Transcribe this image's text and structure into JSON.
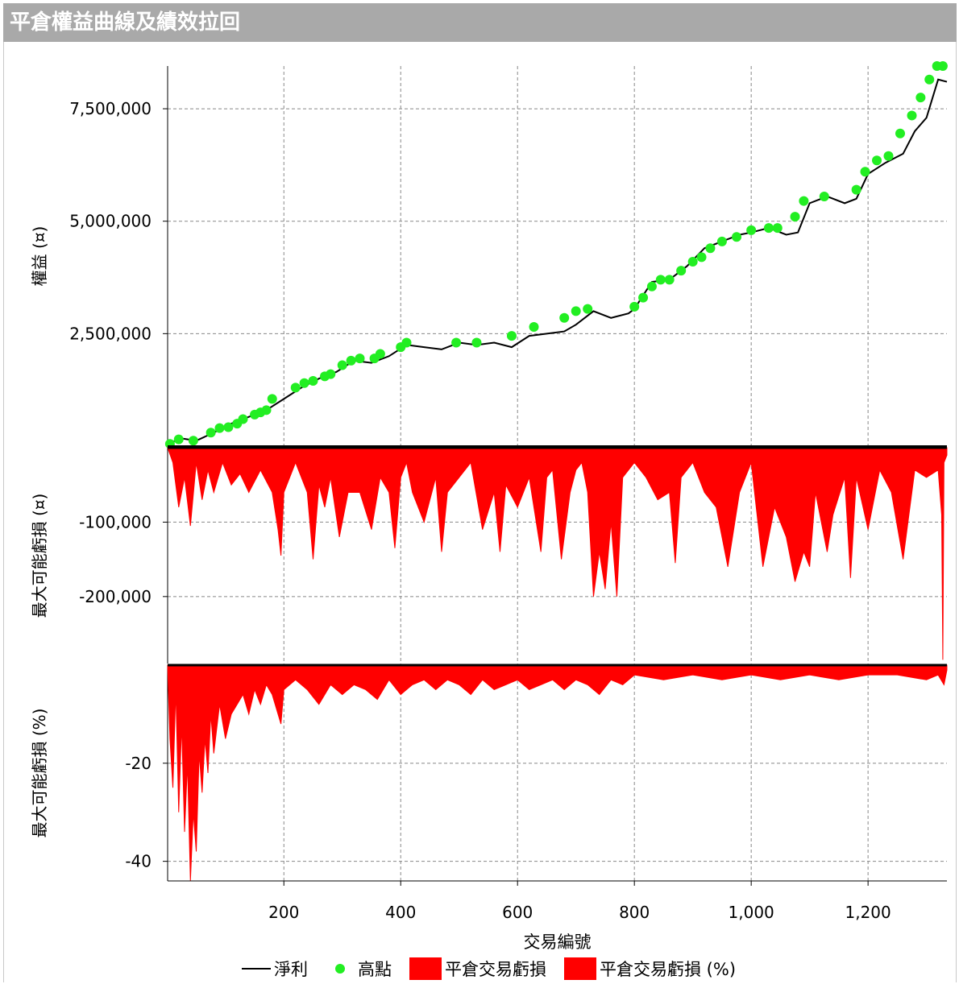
{
  "window": {
    "title": "平倉權益曲線及績效拉回"
  },
  "colors": {
    "equity_line": "#000000",
    "peak_marker": "#22ee22",
    "drawdown_fill": "#ff0000",
    "grid": "#888888",
    "titlebar_bg": "#a9a9a9"
  },
  "legend": [
    {
      "label": "淨利",
      "kind": "line",
      "color": "#000000"
    },
    {
      "label": "高點",
      "kind": "dot",
      "color": "#22ee22"
    },
    {
      "label": "平倉交易虧損",
      "kind": "box",
      "color": "#ff0000"
    },
    {
      "label": "平倉交易虧損 (%)",
      "kind": "box",
      "color": "#ff0000"
    }
  ],
  "chart_data": {
    "type": "line",
    "xlabel": "交易編號",
    "xlim": [
      1,
      1335
    ],
    "x_ticks": [
      200,
      400,
      600,
      800,
      1000,
      1200
    ],
    "x_tick_labels": [
      "200",
      "400",
      "600",
      "800",
      "1,000",
      "1,200"
    ],
    "grid": true,
    "legend_position": "bottom",
    "panels": [
      {
        "name": "equity",
        "type": "line",
        "ylabel": "權益 (¤)",
        "ylim": [
          0,
          8450000
        ],
        "y_ticks": [
          2500000,
          5000000,
          7500000
        ],
        "y_tick_labels": [
          "2,500,000",
          "5,000,000",
          "7,500,000"
        ],
        "series": [
          {
            "name": "淨利",
            "x": [
              1,
              20,
              50,
              80,
              110,
              140,
              170,
              200,
              230,
              260,
              290,
              320,
              350,
              380,
              410,
              440,
              470,
              500,
              530,
              560,
              590,
              620,
              650,
              680,
              700,
              730,
              760,
              790,
              800,
              830,
              860,
              890,
              920,
              950,
              980,
              1000,
              1030,
              1060,
              1080,
              1100,
              1130,
              1160,
              1180,
              1200,
              1230,
              1260,
              1280,
              1300,
              1320,
              1335
            ],
            "y": [
              0,
              180000,
              120000,
              300000,
              500000,
              650000,
              800000,
              1050000,
              1300000,
              1500000,
              1650000,
              1900000,
              1850000,
              2000000,
              2250000,
              2200000,
              2150000,
              2300000,
              2250000,
              2300000,
              2200000,
              2450000,
              2500000,
              2550000,
              2700000,
              3000000,
              2850000,
              2950000,
              3050000,
              3650000,
              3700000,
              4000000,
              4400000,
              4550000,
              4700000,
              4750000,
              4850000,
              4700000,
              4750000,
              5400000,
              5550000,
              5400000,
              5500000,
              6050000,
              6300000,
              6500000,
              7000000,
              7300000,
              8150000,
              8100000
            ]
          },
          {
            "name": "高點",
            "type": "scatter",
            "x": [
              5,
              20,
              45,
              75,
              90,
              105,
              120,
              130,
              150,
              160,
              170,
              180,
              220,
              235,
              250,
              270,
              280,
              300,
              315,
              330,
              355,
              365,
              400,
              410,
              495,
              530,
              590,
              628,
              680,
              700,
              720,
              800,
              815,
              830,
              845,
              860,
              880,
              900,
              915,
              930,
              950,
              975,
              1000,
              1030,
              1045,
              1075,
              1090,
              1125,
              1180,
              1195,
              1215,
              1235,
              1255,
              1275,
              1290,
              1305,
              1318,
              1328
            ],
            "y": [
              50000,
              150000,
              120000,
              300000,
              400000,
              420000,
              500000,
              600000,
              700000,
              750000,
              800000,
              1050000,
              1300000,
              1400000,
              1450000,
              1550000,
              1600000,
              1800000,
              1900000,
              1950000,
              1950000,
              2050000,
              2200000,
              2300000,
              2300000,
              2300000,
              2450000,
              2650000,
              2850000,
              3000000,
              3050000,
              3100000,
              3300000,
              3550000,
              3700000,
              3700000,
              3900000,
              4100000,
              4200000,
              4400000,
              4550000,
              4650000,
              4800000,
              4850000,
              4850000,
              5100000,
              5450000,
              5550000,
              5700000,
              6100000,
              6350000,
              6450000,
              6950000,
              7350000,
              7750000,
              8150000,
              8450000,
              8450000
            ]
          }
        ]
      },
      {
        "name": "drawdown_value",
        "type": "area",
        "ylabel": "最大可能虧損 (¤)",
        "ylim": [
          -290000,
          0
        ],
        "y_ticks": [
          -100000,
          -200000
        ],
        "y_tick_labels": [
          "-100,000",
          "-200,000"
        ],
        "series": [
          {
            "name": "平倉交易虧損",
            "x": [
              1,
              10,
              20,
              30,
              40,
              50,
              60,
              70,
              80,
              95,
              110,
              125,
              140,
              160,
              180,
              190,
              195,
              200,
              220,
              240,
              250,
              260,
              270,
              280,
              295,
              310,
              330,
              350,
              365,
              380,
              390,
              400,
              410,
              420,
              440,
              460,
              470,
              480,
              500,
              520,
              540,
              560,
              570,
              580,
              600,
              620,
              640,
              650,
              660,
              675,
              690,
              700,
              710,
              720,
              730,
              740,
              750,
              760,
              770,
              780,
              800,
              820,
              840,
              860,
              870,
              880,
              900,
              920,
              940,
              960,
              980,
              1000,
              1020,
              1040,
              1060,
              1075,
              1090,
              1100,
              1110,
              1130,
              1140,
              1160,
              1170,
              1180,
              1200,
              1220,
              1240,
              1260,
              1280,
              1300,
              1320,
              1326,
              1328,
              1330,
              1335
            ],
            "y": [
              0,
              -20000,
              -80000,
              -40000,
              -105000,
              -20000,
              -70000,
              -30000,
              -60000,
              -20000,
              -50000,
              -35000,
              -60000,
              -30000,
              -60000,
              -110000,
              -145000,
              -60000,
              -20000,
              -60000,
              -150000,
              -50000,
              -80000,
              -40000,
              -120000,
              -60000,
              -60000,
              -110000,
              -40000,
              -60000,
              -135000,
              -40000,
              -20000,
              -60000,
              -100000,
              -40000,
              -140000,
              -60000,
              -40000,
              -20000,
              -110000,
              -60000,
              -140000,
              -50000,
              -80000,
              -40000,
              -140000,
              -40000,
              -30000,
              -150000,
              -60000,
              -30000,
              -20000,
              -60000,
              -200000,
              -140000,
              -190000,
              -100000,
              -200000,
              -40000,
              -20000,
              -40000,
              -70000,
              -60000,
              -155000,
              -40000,
              -20000,
              -60000,
              -80000,
              -160000,
              -60000,
              -20000,
              -160000,
              -80000,
              -120000,
              -180000,
              -140000,
              -160000,
              -60000,
              -140000,
              -90000,
              -40000,
              -175000,
              -40000,
              -110000,
              -30000,
              -60000,
              -150000,
              -30000,
              -40000,
              -30000,
              -90000,
              -285000,
              -20000,
              -10000
            ]
          }
        ]
      },
      {
        "name": "drawdown_pct",
        "type": "area",
        "ylabel": "最大可能虧損 (%)",
        "ylim": [
          -44,
          0
        ],
        "y_ticks": [
          -20,
          -40
        ],
        "y_tick_labels": [
          "-20",
          "-40"
        ],
        "series": [
          {
            "name": "平倉交易虧損 (%)",
            "x": [
              1,
              5,
              10,
              15,
              20,
              25,
              30,
              35,
              40,
              45,
              50,
              55,
              60,
              65,
              70,
              75,
              80,
              90,
              100,
              110,
              120,
              130,
              140,
              150,
              160,
              170,
              180,
              190,
              195,
              200,
              220,
              240,
              260,
              280,
              300,
              320,
              340,
              360,
              380,
              400,
              420,
              440,
              460,
              480,
              500,
              520,
              540,
              560,
              580,
              600,
              620,
              640,
              660,
              680,
              700,
              720,
              740,
              760,
              780,
              800,
              850,
              900,
              950,
              1000,
              1050,
              1100,
              1150,
              1200,
              1250,
              1300,
              1320,
              1330,
              1335
            ],
            "y": [
              0,
              -15,
              -25,
              -5,
              -30,
              -12,
              -34,
              -20,
              -44,
              -30,
              -38,
              -18,
              -26,
              -15,
              -22,
              -10,
              -18,
              -8,
              -15,
              -10,
              -8,
              -6,
              -10,
              -5,
              -8,
              -4,
              -6,
              -10,
              -12,
              -5,
              -3,
              -5,
              -8,
              -4,
              -6,
              -4,
              -5,
              -7,
              -3,
              -6,
              -4,
              -3,
              -5,
              -3,
              -4,
              -6,
              -3,
              -5,
              -4,
              -3,
              -5,
              -4,
              -3,
              -5,
              -3,
              -4,
              -6,
              -3,
              -4,
              -2,
              -3,
              -2,
              -3,
              -2,
              -3,
              -2,
              -3,
              -2,
              -2,
              -3,
              -2,
              -4,
              -1
            ]
          }
        ]
      }
    ]
  }
}
